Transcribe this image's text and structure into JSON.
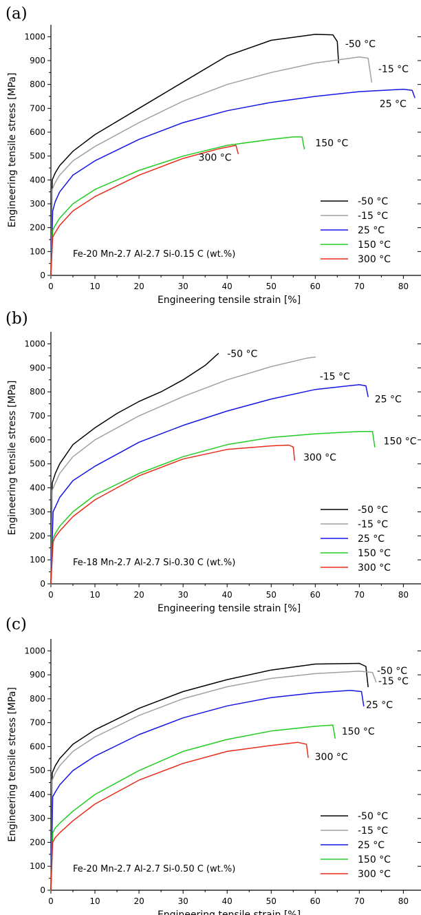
{
  "colors": {
    "-50 °C": "#000000",
    "-15 °C": "#a0a0a0",
    "25 °C": "#1414e6",
    "150 °C": "#22cc22",
    "300 °C": "#e82a1a"
  },
  "chart_data": [
    {
      "type": "line",
      "panel": "(a)",
      "composition": "Fe-20 Mn-2.7 Al-2.7 Si-0.15 C (wt.%)",
      "xlabel": "Engineering tensile strain [%]",
      "ylabel": "Engineering tensile stress [MPa]",
      "xlim": [
        0,
        84
      ],
      "ylim": [
        0,
        1050
      ],
      "xticks": [
        0,
        10,
        20,
        30,
        40,
        50,
        60,
        70,
        80
      ],
      "yticks": [
        0,
        100,
        200,
        300,
        400,
        500,
        600,
        700,
        800,
        900,
        1000
      ],
      "grid": false,
      "legend_position": "bottom-right",
      "series": [
        {
          "name": "-50 °C",
          "x": [
            0,
            0.3,
            1,
            2,
            5,
            10,
            20,
            30,
            40,
            50,
            60,
            64,
            65,
            65.3
          ],
          "y": [
            0,
            400,
            430,
            460,
            520,
            590,
            700,
            810,
            920,
            985,
            1010,
            1008,
            980,
            890
          ],
          "end_label": "-50 °C"
        },
        {
          "name": "-15 °C",
          "x": [
            0,
            0.3,
            1,
            2,
            5,
            10,
            20,
            30,
            40,
            50,
            60,
            70,
            72,
            72.8
          ],
          "y": [
            0,
            360,
            390,
            420,
            480,
            540,
            640,
            730,
            800,
            850,
            890,
            915,
            910,
            810
          ],
          "end_label": "-15 °C"
        },
        {
          "name": "25 °C",
          "x": [
            0,
            0.4,
            1,
            2,
            5,
            10,
            20,
            30,
            40,
            50,
            60,
            70,
            80,
            82,
            82.6
          ],
          "y": [
            0,
            270,
            310,
            350,
            420,
            480,
            570,
            640,
            690,
            725,
            750,
            770,
            780,
            775,
            745
          ],
          "end_label": "25 °C"
        },
        {
          "name": "150 °C",
          "x": [
            0,
            0.4,
            1,
            2,
            5,
            10,
            20,
            30,
            40,
            50,
            55,
            57,
            57.5
          ],
          "y": [
            0,
            190,
            210,
            240,
            300,
            360,
            440,
            500,
            545,
            570,
            580,
            580,
            530
          ],
          "end_label": "150 °C"
        },
        {
          "name": "300 °C",
          "x": [
            0,
            0.4,
            1,
            2,
            5,
            10,
            20,
            30,
            38,
            42,
            42.5
          ],
          "y": [
            0,
            160,
            180,
            210,
            270,
            330,
            420,
            490,
            530,
            545,
            510
          ],
          "end_label": "300 °C"
        }
      ]
    },
    {
      "type": "line",
      "panel": "(b)",
      "composition": "Fe-18 Mn-2.7 Al-2.7 Si-0.30 C (wt.%)",
      "xlabel": "Engineering tensile strain [%]",
      "ylabel": "Engineering tensile stress [MPa]",
      "xlim": [
        0,
        84
      ],
      "ylim": [
        0,
        1050
      ],
      "xticks": [
        0,
        10,
        20,
        30,
        40,
        50,
        60,
        70,
        80
      ],
      "yticks": [
        0,
        100,
        200,
        300,
        400,
        500,
        600,
        700,
        800,
        900,
        1000
      ],
      "grid": false,
      "legend_position": "bottom-right",
      "series": [
        {
          "name": "-50 °C",
          "x": [
            0,
            0.3,
            1,
            2,
            5,
            10,
            15,
            20,
            25,
            30,
            35,
            38
          ],
          "y": [
            0,
            420,
            460,
            500,
            580,
            650,
            710,
            760,
            800,
            850,
            910,
            960
          ],
          "end_label": "-50 °C"
        },
        {
          "name": "-15 °C",
          "x": [
            0,
            0.3,
            1,
            2,
            5,
            10,
            20,
            30,
            40,
            50,
            58,
            60
          ],
          "y": [
            0,
            390,
            420,
            460,
            530,
            600,
            700,
            780,
            850,
            905,
            940,
            945
          ],
          "end_label": "-15 °C"
        },
        {
          "name": "25 °C",
          "x": [
            0,
            0.5,
            1,
            2,
            5,
            10,
            20,
            30,
            40,
            50,
            60,
            70,
            71.5,
            72
          ],
          "y": [
            0,
            300,
            320,
            360,
            430,
            490,
            590,
            660,
            720,
            770,
            810,
            830,
            825,
            780
          ],
          "end_label": "25 °C"
        },
        {
          "name": "150 °C",
          "x": [
            0,
            0.5,
            1,
            2,
            5,
            10,
            20,
            30,
            40,
            50,
            60,
            70,
            73,
            73.5
          ],
          "y": [
            0,
            190,
            210,
            240,
            300,
            370,
            460,
            530,
            580,
            610,
            625,
            635,
            635,
            570
          ],
          "end_label": "150 °C"
        },
        {
          "name": "300 °C",
          "x": [
            0,
            0.5,
            1,
            2,
            5,
            10,
            20,
            30,
            40,
            50,
            54,
            55,
            55.3
          ],
          "y": [
            0,
            175,
            195,
            220,
            280,
            350,
            450,
            520,
            560,
            575,
            578,
            570,
            515
          ],
          "end_label": "300 °C"
        }
      ]
    },
    {
      "type": "line",
      "panel": "(c)",
      "composition": "Fe-20 Mn-2.7 Al-2.7 Si-0.50 C (wt.%)",
      "xlabel": "Engineering tensile strain [%]",
      "ylabel": "Engineering tensile stress [MPa]",
      "xlim": [
        0,
        84
      ],
      "ylim": [
        0,
        1050
      ],
      "xticks": [
        0,
        10,
        20,
        30,
        40,
        50,
        60,
        70,
        80
      ],
      "yticks": [
        0,
        100,
        200,
        300,
        400,
        500,
        600,
        700,
        800,
        900,
        1000
      ],
      "grid": false,
      "legend_position": "bottom-right",
      "series": [
        {
          "name": "-50 °C",
          "x": [
            0,
            0.3,
            1,
            2,
            5,
            10,
            20,
            30,
            40,
            50,
            60,
            70,
            71.5,
            72
          ],
          "y": [
            0,
            490,
            520,
            550,
            610,
            670,
            760,
            830,
            880,
            920,
            945,
            948,
            935,
            850
          ],
          "end_label": "-50 °C"
        },
        {
          "name": "-15 °C",
          "x": [
            0,
            0.3,
            1,
            2,
            5,
            10,
            20,
            30,
            40,
            50,
            60,
            70,
            73,
            73.8
          ],
          "y": [
            0,
            460,
            490,
            520,
            580,
            640,
            730,
            800,
            850,
            885,
            905,
            915,
            910,
            870
          ],
          "end_label": "-15 °C"
        },
        {
          "name": "25 °C",
          "x": [
            0,
            0.4,
            1,
            2,
            5,
            10,
            20,
            30,
            40,
            50,
            60,
            68,
            70.5,
            71
          ],
          "y": [
            0,
            390,
            410,
            440,
            500,
            560,
            650,
            720,
            770,
            805,
            825,
            835,
            830,
            770
          ],
          "end_label": "25 °C"
        },
        {
          "name": "150 °C",
          "x": [
            0,
            0.4,
            1,
            2,
            5,
            10,
            20,
            30,
            40,
            50,
            60,
            64,
            64.5
          ],
          "y": [
            0,
            240,
            260,
            280,
            330,
            400,
            500,
            580,
            630,
            665,
            685,
            690,
            635
          ],
          "end_label": "150 °C"
        },
        {
          "name": "300 °C",
          "x": [
            0,
            0.4,
            1,
            2,
            5,
            10,
            20,
            30,
            40,
            50,
            56,
            58,
            58.4
          ],
          "y": [
            0,
            200,
            220,
            240,
            290,
            360,
            460,
            530,
            580,
            605,
            618,
            610,
            555
          ],
          "end_label": "300 °C"
        }
      ]
    }
  ]
}
